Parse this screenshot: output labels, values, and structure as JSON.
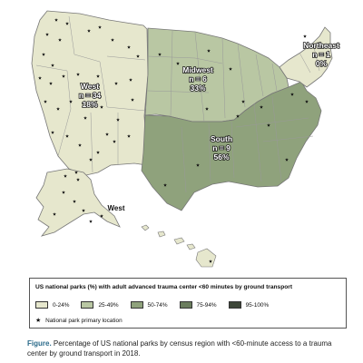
{
  "map": {
    "regions": [
      {
        "name": "West",
        "count": "n = 34",
        "percent": "18%",
        "color": "#e6e7cd"
      },
      {
        "name": "Midwest",
        "count": "n = 6",
        "percent": "33%",
        "color": "#b9c7a3"
      },
      {
        "name": "Northeast",
        "count": "n = 1",
        "percent": "0%",
        "color": "#e6e7cd"
      },
      {
        "name": "South",
        "count": "n = 9",
        "percent": "56%",
        "color": "#8fa27c"
      }
    ],
    "inset_label": "West"
  },
  "legend": {
    "title": "US national parks (%) with adult advanced trauma center <60 minutes by ground transport",
    "items": [
      {
        "label": "0-24%",
        "color": "#e6e7cd"
      },
      {
        "label": "25-49%",
        "color": "#b9c7a3"
      },
      {
        "label": "50-74%",
        "color": "#8fa27c"
      },
      {
        "label": "75-94%",
        "color": "#6b7d5e"
      },
      {
        "label": "95-100%",
        "color": "#3e4739"
      }
    ],
    "location_symbol": "★",
    "location_label": "National park primary location"
  },
  "caption": {
    "label": "Figure.",
    "text": " Percentage of US national parks by census region with <60-minute access to a trauma center by ground transport in 2018."
  }
}
